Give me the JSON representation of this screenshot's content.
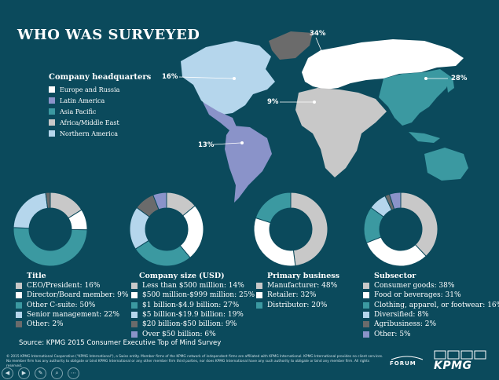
{
  "page_title": "WHO WAS SURVEYED",
  "colors": {
    "background": "#0b4a5c",
    "europe_russia": "#c8c8c8",
    "latin_america": "#8a93c9",
    "asia_pacific": "#3b99a1",
    "africa_middle_east": "#c8c8c8",
    "northern_america": "#b5d6ec",
    "dark_gray": "#6b6b6b",
    "white": "#ffffff"
  },
  "map": {
    "legend_title": "Company headquarters",
    "legend": [
      {
        "label": "Europe and Russia",
        "color": "#ffffff"
      },
      {
        "label": "Latin America",
        "color": "#8a93c9"
      },
      {
        "label": "Asia Pacific",
        "color": "#3b99a1"
      },
      {
        "label": "Africa/Middle East",
        "color": "#c8c8c8"
      },
      {
        "label": "Northern America",
        "color": "#b5d6ec"
      }
    ],
    "labels": {
      "northern_america": "16%",
      "europe_russia": "34%",
      "asia_pacific": "28%",
      "africa_middle_east": "9%",
      "latin_america": "13%"
    }
  },
  "chart_data": [
    {
      "type": "pie",
      "title": "Title",
      "categories": [
        "CEO/President",
        "Director/Board member",
        "Other C-suite",
        "Senior management",
        "Other"
      ],
      "values": [
        16,
        9,
        50,
        22,
        2
      ],
      "colors": [
        "#c8c8c8",
        "#ffffff",
        "#3b99a1",
        "#b5d6ec",
        "#6b6b6b"
      ],
      "labels": [
        "CEO/President: 16%",
        "Director/Board member: 9%",
        "Other C-suite: 50%",
        "Senior management: 22%",
        "Other: 2%"
      ]
    },
    {
      "type": "pie",
      "title": "Company size (USD)",
      "categories": [
        "Less than $500 million",
        "$500 million-$999 million",
        "$1 billion-$4.9 billion",
        "$5 billion-$19.9 billion",
        "$20 billion-$50 billion",
        "Over $50 billion"
      ],
      "values": [
        14,
        25,
        27,
        19,
        9,
        6
      ],
      "colors": [
        "#c8c8c8",
        "#ffffff",
        "#3b99a1",
        "#b5d6ec",
        "#6b6b6b",
        "#8a93c9"
      ],
      "labels": [
        "Less than $500 million: 14%",
        "$500 million-$999 million: 25%",
        "$1 billion-$4.9 billion: 27%",
        "$5 billion-$19.9 billion: 19%",
        "$20 billion-$50 billion: 9%",
        "Over $50 billion: 6%"
      ]
    },
    {
      "type": "pie",
      "title": "Primary business",
      "categories": [
        "Manufacturer",
        "Retailer",
        "Distributor"
      ],
      "values": [
        48,
        32,
        20
      ],
      "colors": [
        "#c8c8c8",
        "#ffffff",
        "#3b99a1"
      ],
      "labels": [
        "Manufacturer: 48%",
        "Retailer: 32%",
        "Distributor: 20%"
      ]
    },
    {
      "type": "pie",
      "title": "Subsector",
      "categories": [
        "Consumer goods",
        "Food or beverages",
        "Clothing, apparel, or footwear",
        "Diversified",
        "Agribusiness",
        "Other"
      ],
      "values": [
        38,
        31,
        16,
        8,
        2,
        5
      ],
      "colors": [
        "#c8c8c8",
        "#ffffff",
        "#3b99a1",
        "#b5d6ec",
        "#6b6b6b",
        "#8a93c9"
      ],
      "labels": [
        "Consumer goods: 38%",
        "Food or beverages: 31%",
        "Clothing, apparel, or footwear: 16%",
        "Diversified: 8%",
        "Agribusiness: 2%",
        "Other: 5%"
      ]
    }
  ],
  "source": "Source: KPMG 2015 Consumer Executive Top of Mind Survey",
  "footer_text_1": "© 2015 KPMG International Cooperative (\"KPMG International\"), a Swiss entity. Member firms of the KPMG network of independent firms are affiliated with KPMG International. KPMG International provides no client services.",
  "footer_text_2": "No member firm has any authority to obligate or bind KPMG International or any other member firm third parties, nor does KPMG International have any such authority to obligate or bind any member firm. All rights reserved.",
  "forum_logo": "FORUM",
  "kpmg_logo": "KPMG",
  "nav_icons": [
    "previous-icon",
    "next-icon",
    "pen-icon",
    "zoom-icon",
    "more-icon"
  ]
}
